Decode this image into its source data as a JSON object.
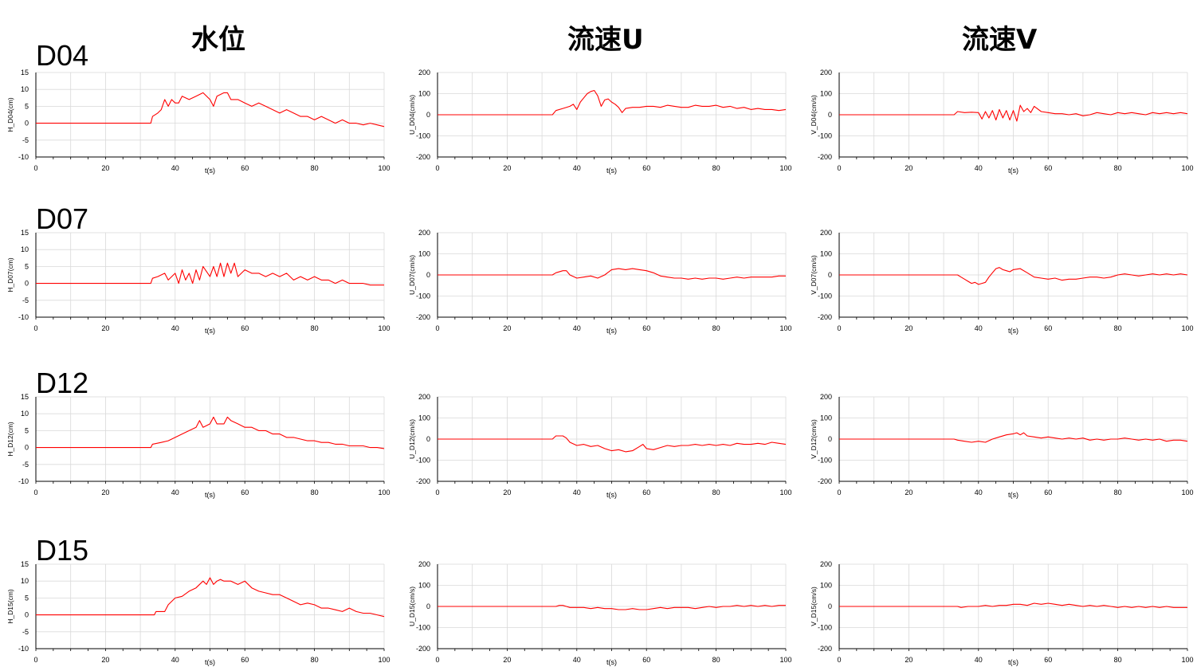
{
  "columns": [
    "水位",
    "流速U",
    "流速V"
  ],
  "rows": [
    "D04",
    "D07",
    "D12",
    "D15"
  ],
  "chart_data": [
    {
      "type": "line",
      "row": "D04",
      "col": "水位",
      "ylabel": "H_D04(cm)",
      "xlabel": "t(s)",
      "xlim": [
        0,
        100
      ],
      "ylim": [
        -10,
        15
      ],
      "yticks": [
        -10,
        -5,
        0,
        5,
        10,
        15
      ],
      "xticks": [
        0,
        20,
        40,
        60,
        80,
        100
      ],
      "grid": true,
      "color": "#ff0000",
      "x": [
        0,
        33,
        33.5,
        35,
        36,
        37,
        38,
        39,
        40,
        41,
        42,
        44,
        46,
        48,
        50,
        51,
        52,
        54,
        55,
        56,
        58,
        60,
        62,
        64,
        66,
        68,
        70,
        72,
        74,
        76,
        78,
        80,
        82,
        84,
        86,
        88,
        90,
        92,
        94,
        96,
        98,
        100
      ],
      "y": [
        0,
        0,
        2,
        3,
        4,
        7,
        5,
        7,
        6,
        6,
        8,
        7,
        8,
        9,
        7,
        5,
        8,
        9,
        9,
        7,
        7,
        6,
        5,
        6,
        5,
        4,
        3,
        4,
        3,
        2,
        2,
        1,
        2,
        1,
        0,
        1,
        0,
        0,
        -0.5,
        0,
        -0.5,
        -1
      ]
    },
    {
      "type": "line",
      "row": "D04",
      "col": "流速U",
      "ylabel": "U_D04(cm/s)",
      "xlabel": "t(s)",
      "xlim": [
        0,
        100
      ],
      "ylim": [
        -200,
        200
      ],
      "yticks": [
        -200,
        -100,
        0,
        100,
        200
      ],
      "xticks": [
        0,
        20,
        40,
        60,
        80,
        100
      ],
      "grid": true,
      "color": "#ff0000",
      "x": [
        0,
        33,
        34,
        36,
        38,
        39,
        40,
        41,
        42,
        43,
        44,
        45,
        46,
        47,
        48,
        49,
        50,
        51,
        52,
        53,
        54,
        56,
        58,
        60,
        62,
        64,
        66,
        68,
        70,
        72,
        74,
        76,
        78,
        80,
        82,
        84,
        86,
        88,
        90,
        92,
        94,
        96,
        98,
        100
      ],
      "y": [
        0,
        0,
        20,
        30,
        40,
        50,
        25,
        60,
        80,
        100,
        110,
        115,
        90,
        40,
        70,
        75,
        60,
        50,
        35,
        10,
        30,
        35,
        35,
        40,
        40,
        35,
        45,
        40,
        35,
        35,
        45,
        40,
        40,
        45,
        35,
        40,
        30,
        35,
        25,
        30,
        25,
        25,
        20,
        25
      ]
    },
    {
      "type": "line",
      "row": "D04",
      "col": "流速V",
      "ylabel": "V_D04(cm/s)",
      "xlabel": "t(s)",
      "xlim": [
        0,
        100
      ],
      "ylim": [
        -200,
        200
      ],
      "yticks": [
        -200,
        -100,
        0,
        100,
        200
      ],
      "xticks": [
        0,
        20,
        40,
        60,
        80,
        100
      ],
      "grid": true,
      "color": "#ff0000",
      "x": [
        0,
        33,
        34,
        36,
        38,
        40,
        41,
        42,
        43,
        44,
        45,
        46,
        47,
        48,
        49,
        50,
        51,
        52,
        53,
        54,
        55,
        56,
        58,
        60,
        62,
        64,
        66,
        68,
        70,
        72,
        74,
        76,
        78,
        80,
        82,
        84,
        86,
        88,
        90,
        92,
        94,
        96,
        98,
        100
      ],
      "y": [
        0,
        0,
        15,
        10,
        12,
        10,
        -20,
        15,
        -15,
        20,
        -25,
        25,
        -15,
        20,
        -25,
        20,
        -30,
        45,
        15,
        30,
        10,
        40,
        15,
        10,
        5,
        5,
        0,
        5,
        -5,
        0,
        10,
        5,
        0,
        10,
        5,
        10,
        5,
        0,
        10,
        5,
        10,
        5,
        10,
        5
      ]
    },
    {
      "type": "line",
      "row": "D07",
      "col": "水位",
      "ylabel": "H_D07(cm)",
      "xlabel": "t(s)",
      "xlim": [
        0,
        100
      ],
      "ylim": [
        -10,
        15
      ],
      "yticks": [
        -10,
        -5,
        0,
        5,
        10,
        15
      ],
      "xticks": [
        0,
        20,
        40,
        60,
        80,
        100
      ],
      "grid": true,
      "color": "#ff0000",
      "x": [
        0,
        33,
        33.5,
        35,
        37,
        38,
        40,
        41,
        42,
        43,
        44,
        45,
        46,
        47,
        48,
        50,
        51,
        52,
        53,
        54,
        55,
        56,
        57,
        58,
        60,
        62,
        64,
        66,
        68,
        70,
        72,
        74,
        76,
        78,
        80,
        82,
        84,
        86,
        88,
        90,
        92,
        94,
        96,
        98,
        100
      ],
      "y": [
        0,
        0,
        1.5,
        2,
        3,
        1,
        3,
        0,
        4,
        1,
        3,
        0,
        4,
        1,
        5,
        2,
        5,
        2,
        6,
        2,
        6,
        3,
        6,
        2,
        4,
        3,
        3,
        2,
        3,
        2,
        3,
        1,
        2,
        1,
        2,
        1,
        1,
        0,
        1,
        0,
        0,
        0,
        -0.5,
        -0.5,
        -0.5
      ]
    },
    {
      "type": "line",
      "row": "D07",
      "col": "流速U",
      "ylabel": "U_D07(cm/s)",
      "xlabel": "t(s)",
      "xlim": [
        0,
        100
      ],
      "ylim": [
        -200,
        200
      ],
      "yticks": [
        -200,
        -100,
        0,
        100,
        200
      ],
      "xticks": [
        0,
        20,
        40,
        60,
        80,
        100
      ],
      "grid": true,
      "color": "#ff0000",
      "x": [
        0,
        33,
        34,
        36,
        37,
        38,
        40,
        42,
        44,
        46,
        48,
        50,
        52,
        54,
        56,
        58,
        60,
        62,
        64,
        66,
        68,
        70,
        72,
        74,
        76,
        78,
        80,
        82,
        84,
        86,
        88,
        90,
        92,
        94,
        96,
        98,
        100
      ],
      "y": [
        0,
        0,
        10,
        20,
        20,
        0,
        -15,
        -10,
        -5,
        -15,
        0,
        25,
        30,
        25,
        30,
        25,
        20,
        10,
        -5,
        -10,
        -15,
        -15,
        -20,
        -15,
        -20,
        -15,
        -15,
        -20,
        -15,
        -10,
        -15,
        -10,
        -10,
        -10,
        -10,
        -5,
        -5
      ]
    },
    {
      "type": "line",
      "row": "D07",
      "col": "流速V",
      "ylabel": "V_D07(cm/s)",
      "xlabel": "t(s)",
      "xlim": [
        0,
        100
      ],
      "ylim": [
        -200,
        200
      ],
      "yticks": [
        -200,
        -100,
        0,
        100,
        200
      ],
      "xticks": [
        0,
        20,
        40,
        60,
        80,
        100
      ],
      "grid": true,
      "color": "#ff0000",
      "x": [
        0,
        34,
        35,
        36,
        37,
        38,
        39,
        40,
        41,
        42,
        43,
        44,
        45,
        46,
        47,
        48,
        49,
        50,
        52,
        54,
        56,
        58,
        60,
        62,
        64,
        66,
        68,
        70,
        72,
        74,
        76,
        78,
        80,
        82,
        84,
        86,
        88,
        90,
        92,
        94,
        96,
        98,
        100
      ],
      "y": [
        0,
        0,
        -10,
        -20,
        -30,
        -40,
        -35,
        -45,
        -40,
        -35,
        -10,
        10,
        30,
        35,
        25,
        20,
        15,
        25,
        30,
        10,
        -10,
        -15,
        -20,
        -15,
        -25,
        -20,
        -20,
        -15,
        -10,
        -10,
        -15,
        -10,
        0,
        5,
        0,
        -5,
        0,
        5,
        0,
        5,
        0,
        5,
        0
      ]
    },
    {
      "type": "line",
      "row": "D12",
      "col": "水位",
      "ylabel": "H_D12(cm)",
      "xlabel": "t(s)",
      "xlim": [
        0,
        100
      ],
      "ylim": [
        -10,
        15
      ],
      "yticks": [
        -10,
        -5,
        0,
        5,
        10,
        15
      ],
      "xticks": [
        0,
        20,
        40,
        60,
        80,
        100
      ],
      "grid": true,
      "color": "#ff0000",
      "x": [
        0,
        33,
        33.5,
        36,
        38,
        40,
        42,
        44,
        46,
        47,
        48,
        50,
        51,
        52,
        54,
        55,
        56,
        58,
        60,
        62,
        64,
        66,
        68,
        70,
        72,
        74,
        76,
        78,
        80,
        82,
        84,
        86,
        88,
        90,
        92,
        94,
        96,
        98,
        100
      ],
      "y": [
        0,
        0,
        1,
        1.5,
        2,
        3,
        4,
        5,
        6,
        8,
        6,
        7,
        9,
        7,
        7,
        9,
        8,
        7,
        6,
        6,
        5,
        5,
        4,
        4,
        3,
        3,
        2.5,
        2,
        2,
        1.5,
        1.5,
        1,
        1,
        0.5,
        0.5,
        0.5,
        0,
        0,
        -0.3
      ]
    },
    {
      "type": "line",
      "row": "D12",
      "col": "流速U",
      "ylabel": "U_D12(cm/s)",
      "xlabel": "t(s)",
      "xlim": [
        0,
        100
      ],
      "ylim": [
        -200,
        200
      ],
      "yticks": [
        -200,
        -100,
        0,
        100,
        200
      ],
      "xticks": [
        0,
        20,
        40,
        60,
        80,
        100
      ],
      "grid": true,
      "color": "#ff0000",
      "x": [
        0,
        33,
        34,
        36,
        37,
        38,
        40,
        42,
        44,
        46,
        48,
        50,
        52,
        54,
        56,
        58,
        59,
        60,
        62,
        64,
        66,
        68,
        70,
        72,
        74,
        76,
        78,
        80,
        82,
        84,
        86,
        88,
        90,
        92,
        94,
        96,
        98,
        100
      ],
      "y": [
        0,
        0,
        15,
        15,
        5,
        -15,
        -30,
        -25,
        -35,
        -30,
        -45,
        -55,
        -50,
        -60,
        -55,
        -35,
        -25,
        -45,
        -50,
        -40,
        -30,
        -35,
        -30,
        -30,
        -25,
        -30,
        -25,
        -30,
        -25,
        -30,
        -20,
        -25,
        -25,
        -20,
        -25,
        -15,
        -20,
        -25
      ]
    },
    {
      "type": "line",
      "row": "D12",
      "col": "流速V",
      "ylabel": "V_D12(cm/s)",
      "xlabel": "t(s)",
      "xlim": [
        0,
        100
      ],
      "ylim": [
        -200,
        200
      ],
      "yticks": [
        -200,
        -100,
        0,
        100,
        200
      ],
      "xticks": [
        0,
        20,
        40,
        60,
        80,
        100
      ],
      "grid": true,
      "color": "#ff0000",
      "x": [
        0,
        33,
        34,
        36,
        38,
        40,
        42,
        44,
        46,
        48,
        50,
        51,
        52,
        53,
        54,
        56,
        58,
        60,
        62,
        64,
        66,
        68,
        70,
        72,
        74,
        76,
        78,
        80,
        82,
        84,
        86,
        88,
        90,
        92,
        94,
        96,
        98,
        100
      ],
      "y": [
        0,
        0,
        -5,
        -10,
        -15,
        -10,
        -15,
        0,
        10,
        20,
        25,
        30,
        20,
        30,
        15,
        10,
        5,
        10,
        5,
        0,
        5,
        0,
        5,
        -5,
        0,
        -5,
        0,
        0,
        5,
        0,
        -5,
        0,
        -5,
        0,
        -10,
        -5,
        -5,
        -10
      ]
    },
    {
      "type": "line",
      "row": "D15",
      "col": "水位",
      "ylabel": "H_D15(cm)",
      "xlabel": "t(s)",
      "xlim": [
        0,
        100
      ],
      "ylim": [
        -10,
        15
      ],
      "yticks": [
        -10,
        -5,
        0,
        5,
        10,
        15
      ],
      "xticks": [
        0,
        20,
        40,
        60,
        80,
        100
      ],
      "grid": true,
      "color": "#ff0000",
      "x": [
        0,
        34,
        34.5,
        37,
        38,
        40,
        42,
        44,
        46,
        48,
        49,
        50,
        51,
        52,
        53,
        54,
        56,
        58,
        60,
        62,
        64,
        66,
        68,
        70,
        72,
        74,
        76,
        78,
        80,
        82,
        84,
        86,
        88,
        90,
        92,
        94,
        96,
        98,
        100
      ],
      "y": [
        0,
        0,
        1,
        1,
        3,
        5,
        5.5,
        7,
        8,
        10,
        9,
        11,
        9,
        10,
        10.5,
        10,
        10,
        9,
        10,
        8,
        7,
        6.5,
        6,
        6,
        5,
        4,
        3,
        3.5,
        3,
        2,
        2,
        1.5,
        1,
        2,
        1,
        0.5,
        0.5,
        0,
        -0.5
      ]
    },
    {
      "type": "line",
      "row": "D15",
      "col": "流速U",
      "ylabel": "U_D15(cm/s)",
      "xlabel": "t(s)",
      "xlim": [
        0,
        100
      ],
      "ylim": [
        -200,
        200
      ],
      "yticks": [
        -200,
        -100,
        0,
        100,
        200
      ],
      "xticks": [
        0,
        20,
        40,
        60,
        80,
        100
      ],
      "grid": true,
      "color": "#ff0000",
      "x": [
        0,
        34,
        35,
        36,
        37,
        38,
        40,
        42,
        44,
        46,
        48,
        50,
        52,
        54,
        56,
        58,
        60,
        62,
        64,
        66,
        68,
        70,
        72,
        74,
        76,
        78,
        80,
        82,
        84,
        86,
        88,
        90,
        92,
        94,
        96,
        98,
        100
      ],
      "y": [
        0,
        0,
        5,
        5,
        0,
        -5,
        -5,
        -5,
        -10,
        -5,
        -10,
        -10,
        -15,
        -15,
        -10,
        -15,
        -15,
        -10,
        -5,
        -10,
        -5,
        -5,
        -5,
        -10,
        -5,
        0,
        -5,
        0,
        0,
        5,
        0,
        5,
        0,
        5,
        0,
        5,
        5
      ]
    },
    {
      "type": "line",
      "row": "D15",
      "col": "流速V",
      "ylabel": "V_D15(cm/s)",
      "xlabel": "t(s)",
      "xlim": [
        0,
        100
      ],
      "ylim": [
        -200,
        200
      ],
      "yticks": [
        -200,
        -100,
        0,
        100,
        200
      ],
      "xticks": [
        0,
        20,
        40,
        60,
        80,
        100
      ],
      "grid": true,
      "color": "#ff0000",
      "x": [
        0,
        34,
        35,
        37,
        40,
        42,
        44,
        46,
        48,
        50,
        52,
        54,
        56,
        58,
        60,
        62,
        64,
        66,
        68,
        70,
        72,
        74,
        76,
        78,
        80,
        82,
        84,
        86,
        88,
        90,
        92,
        94,
        96,
        98,
        100
      ],
      "y": [
        0,
        0,
        -5,
        0,
        0,
        5,
        0,
        5,
        5,
        10,
        10,
        5,
        15,
        10,
        15,
        10,
        5,
        10,
        5,
        0,
        5,
        0,
        5,
        0,
        -5,
        0,
        -5,
        0,
        -5,
        0,
        -5,
        0,
        -5,
        -5,
        -5
      ]
    }
  ]
}
